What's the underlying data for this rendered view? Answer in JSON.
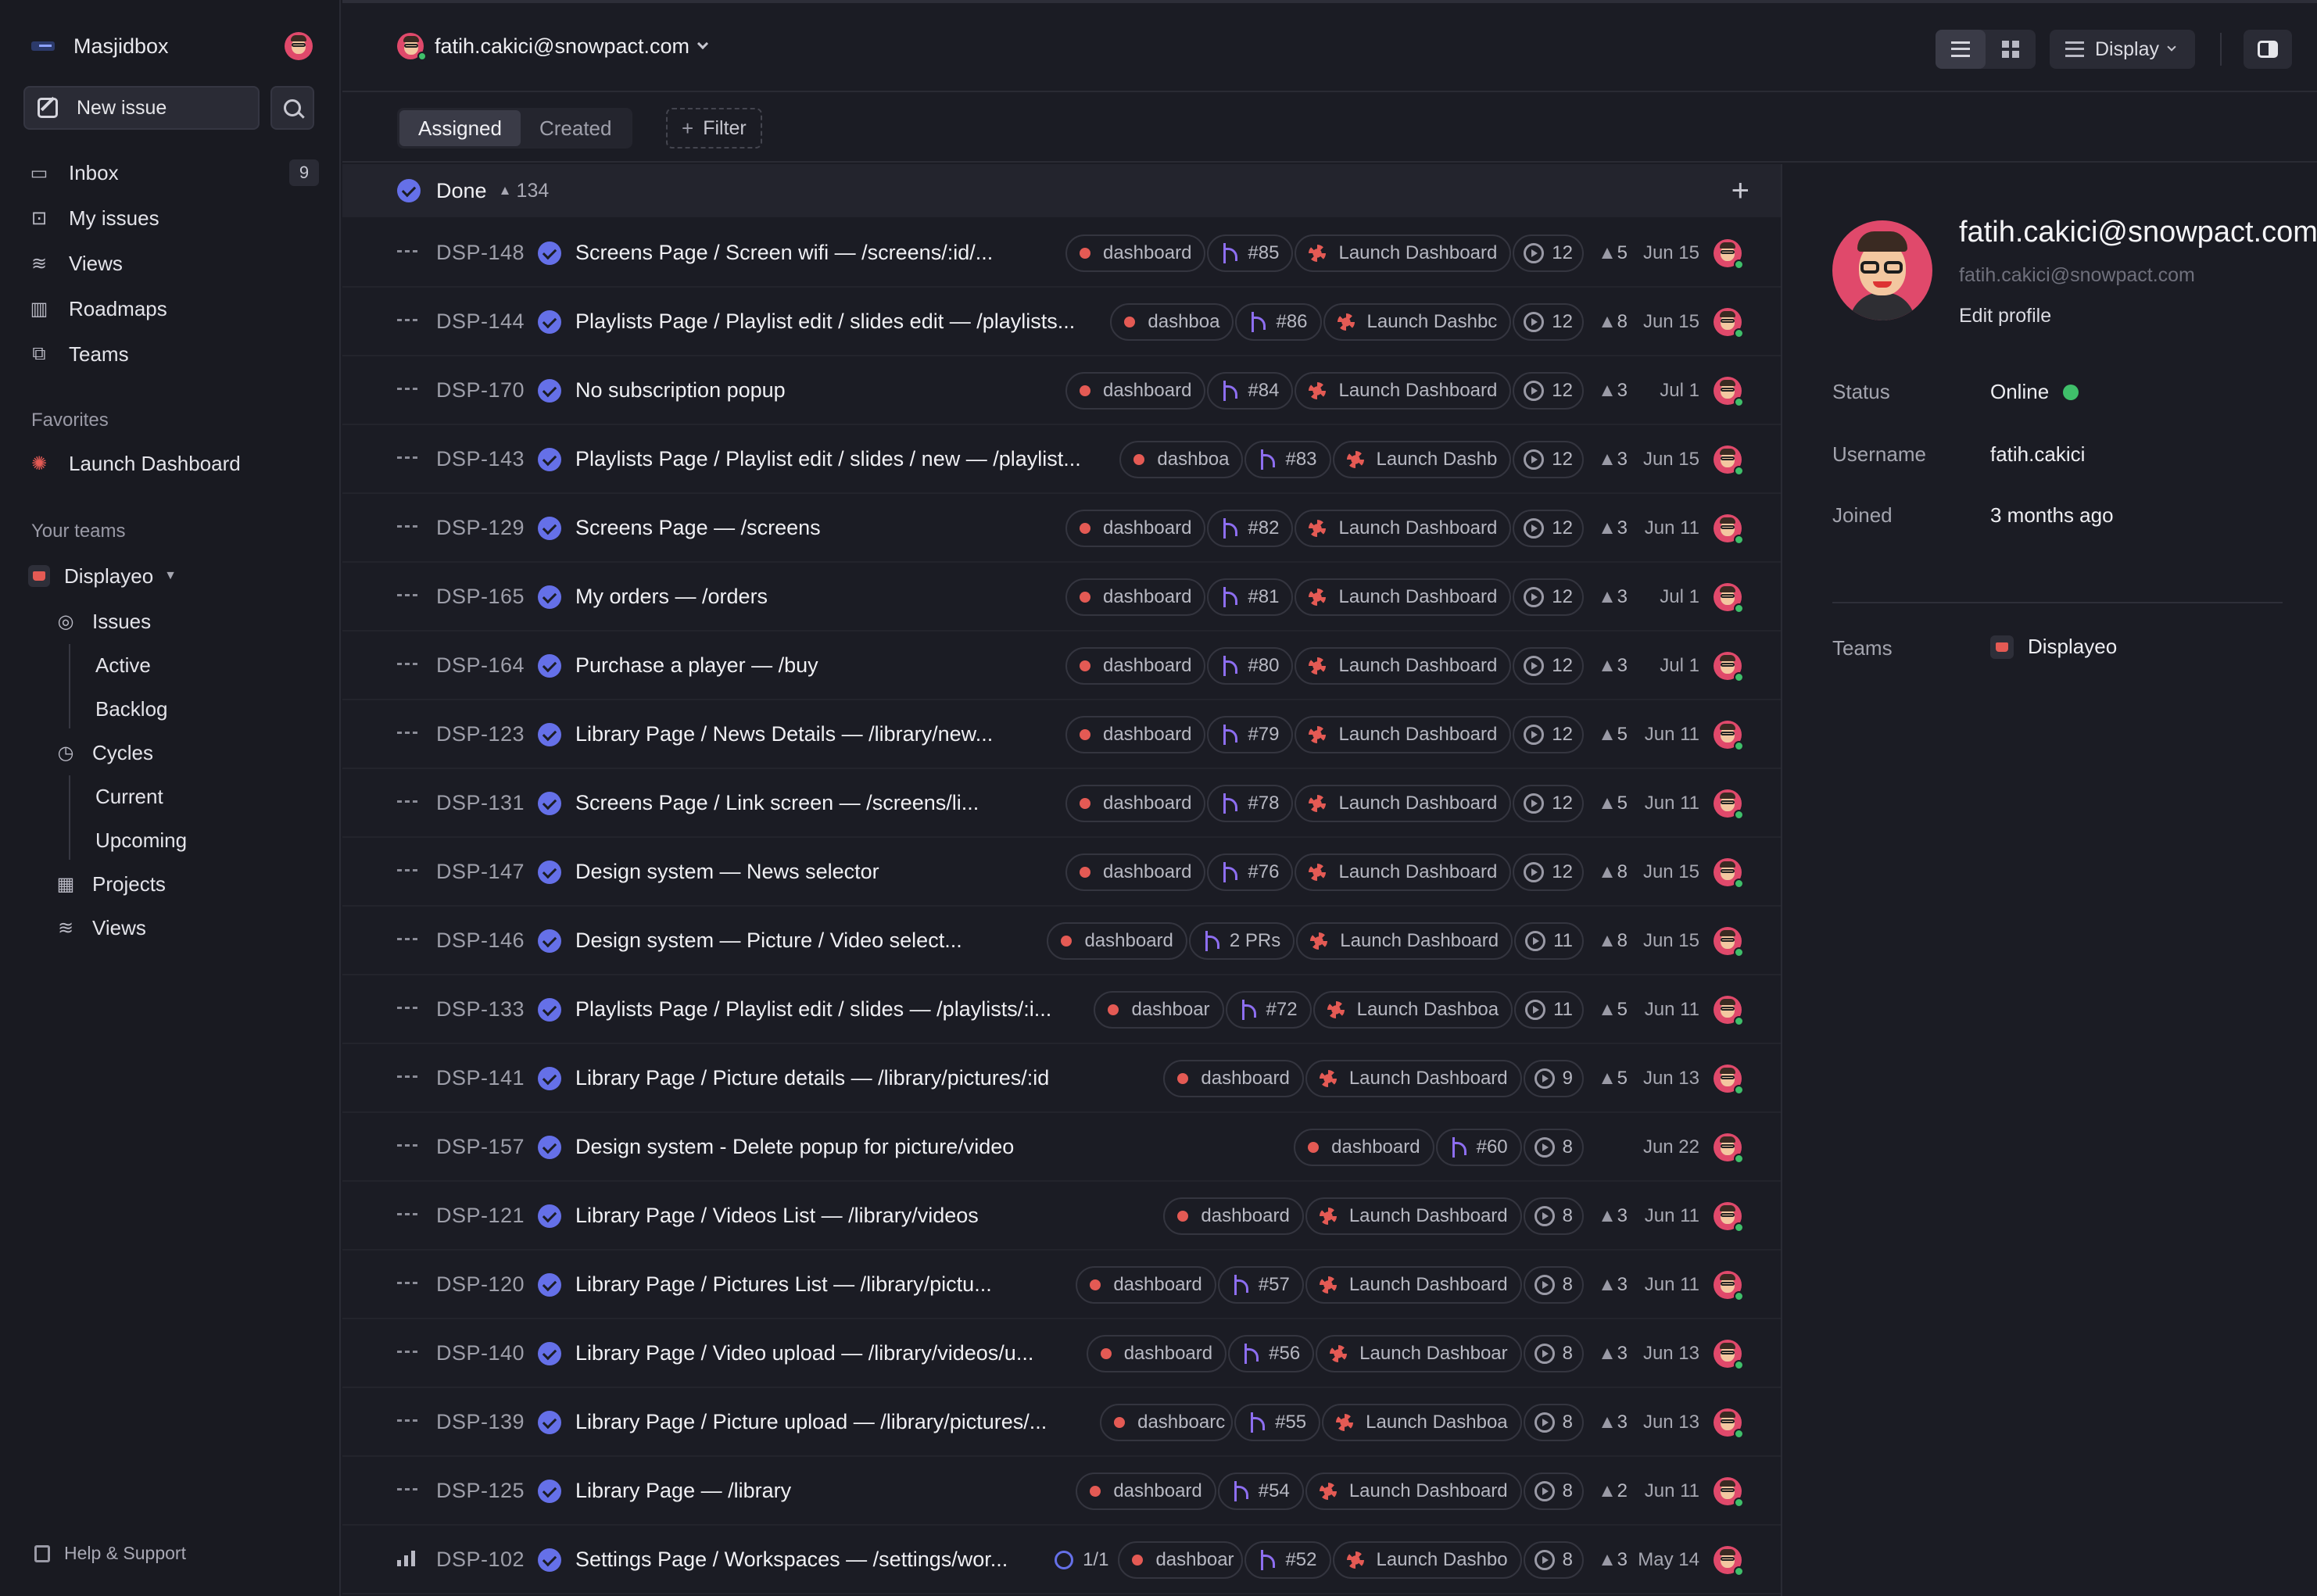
{
  "workspace": {
    "name": "Masjidbox"
  },
  "sidebar": {
    "new_issue_label": "New issue",
    "nav": [
      {
        "label": "Inbox",
        "icon": "inbox-icon",
        "count": "9"
      },
      {
        "label": "My issues",
        "icon": "target-icon"
      },
      {
        "label": "Views",
        "icon": "layers-icon"
      },
      {
        "label": "Roadmaps",
        "icon": "map-icon"
      },
      {
        "label": "Teams",
        "icon": "team-icon"
      }
    ],
    "favorites_label": "Favorites",
    "favorites": [
      {
        "label": "Launch Dashboard",
        "icon": "project-icon"
      }
    ],
    "your_teams_label": "Your teams",
    "team": {
      "name": "Displayeo",
      "items": {
        "issues": "Issues",
        "active": "Active",
        "backlog": "Backlog",
        "cycles": "Cycles",
        "current": "Current",
        "upcoming": "Upcoming",
        "projects": "Projects",
        "views": "Views"
      }
    },
    "help_label": "Help & Support"
  },
  "header": {
    "user": "fatih.cakici@snowpact.com",
    "display_label": "Display",
    "tabs": [
      "Assigned",
      "Created"
    ],
    "active_tab": "Assigned",
    "filter_label": "Filter"
  },
  "group": {
    "title": "Done",
    "count": "134"
  },
  "issues": [
    {
      "id": "DSP-148",
      "title": "Screens Page / Screen wifi — /screens/:id/...",
      "label": "dashboard",
      "pr": "#85",
      "project": "Launch Dashboard",
      "cycle": "12",
      "estimate": "5",
      "date": "Jun 15"
    },
    {
      "id": "DSP-144",
      "title": "Playlists Page / Playlist edit / slides edit — /playlists...",
      "label": "dashboa",
      "pr": "#86",
      "project": "Launch Dashbc",
      "cycle": "12",
      "estimate": "8",
      "date": "Jun 15"
    },
    {
      "id": "DSP-170",
      "title": "No subscription popup",
      "label": "dashboard",
      "pr": "#84",
      "project": "Launch Dashboard",
      "cycle": "12",
      "estimate": "3",
      "date": "Jul 1"
    },
    {
      "id": "DSP-143",
      "title": "Playlists Page / Playlist edit / slides / new — /playlist...",
      "label": "dashboa",
      "pr": "#83",
      "project": "Launch Dashb",
      "cycle": "12",
      "estimate": "3",
      "date": "Jun 15"
    },
    {
      "id": "DSP-129",
      "title": "Screens Page — /screens",
      "label": "dashboard",
      "pr": "#82",
      "project": "Launch Dashboard",
      "cycle": "12",
      "estimate": "3",
      "date": "Jun 11"
    },
    {
      "id": "DSP-165",
      "title": "My orders — /orders",
      "label": "dashboard",
      "pr": "#81",
      "project": "Launch Dashboard",
      "cycle": "12",
      "estimate": "3",
      "date": "Jul 1"
    },
    {
      "id": "DSP-164",
      "title": "Purchase a player — /buy",
      "label": "dashboard",
      "pr": "#80",
      "project": "Launch Dashboard",
      "cycle": "12",
      "estimate": "3",
      "date": "Jul 1"
    },
    {
      "id": "DSP-123",
      "title": "Library Page / News Details — /library/new...",
      "label": "dashboard",
      "pr": "#79",
      "project": "Launch Dashboard",
      "cycle": "12",
      "estimate": "5",
      "date": "Jun 11"
    },
    {
      "id": "DSP-131",
      "title": "Screens Page / Link screen — /screens/li...",
      "label": "dashboard",
      "pr": "#78",
      "project": "Launch Dashboard",
      "cycle": "12",
      "estimate": "5",
      "date": "Jun 11"
    },
    {
      "id": "DSP-147",
      "title": "Design system — News selector",
      "label": "dashboard",
      "pr": "#76",
      "project": "Launch Dashboard",
      "cycle": "12",
      "estimate": "8",
      "date": "Jun 15"
    },
    {
      "id": "DSP-146",
      "title": "Design system — Picture / Video select...",
      "label": "dashboard",
      "pr": "2 PRs",
      "project": "Launch Dashboard",
      "cycle": "11",
      "estimate": "8",
      "date": "Jun 15"
    },
    {
      "id": "DSP-133",
      "title": "Playlists Page / Playlist edit / slides — /playlists/:i...",
      "label": "dashboar",
      "pr": "#72",
      "project": "Launch Dashboa",
      "cycle": "11",
      "estimate": "5",
      "date": "Jun 11"
    },
    {
      "id": "DSP-141",
      "title": "Library Page / Picture details — /library/pictures/:id",
      "label": "dashboard",
      "pr": "",
      "project": "Launch Dashboard",
      "cycle": "9",
      "estimate": "5",
      "date": "Jun 13"
    },
    {
      "id": "DSP-157",
      "title": "Design system - Delete popup for picture/video",
      "label": "dashboard",
      "pr": "#60",
      "project": "",
      "cycle": "8",
      "estimate": "",
      "date": "Jun 22"
    },
    {
      "id": "DSP-121",
      "title": "Library Page / Videos List — /library/videos",
      "label": "dashboard",
      "pr": "",
      "project": "Launch Dashboard",
      "cycle": "8",
      "estimate": "3",
      "date": "Jun 11"
    },
    {
      "id": "DSP-120",
      "title": "Library Page / Pictures List — /library/pictu...",
      "label": "dashboard",
      "pr": "#57",
      "project": "Launch Dashboard",
      "cycle": "8",
      "estimate": "3",
      "date": "Jun 11"
    },
    {
      "id": "DSP-140",
      "title": "Library Page / Video upload — /library/videos/u...",
      "label": "dashboard",
      "pr": "#56",
      "project": "Launch Dashboar",
      "cycle": "8",
      "estimate": "3",
      "date": "Jun 13"
    },
    {
      "id": "DSP-139",
      "title": "Library Page / Picture upload — /library/pictures/...",
      "label": "dashboarc",
      "pr": "#55",
      "project": "Launch Dashboa",
      "cycle": "8",
      "estimate": "3",
      "date": "Jun 13"
    },
    {
      "id": "DSP-125",
      "title": "Library Page — /library",
      "label": "dashboard",
      "pr": "#54",
      "project": "Launch Dashboard",
      "cycle": "8",
      "estimate": "2",
      "date": "Jun 11"
    },
    {
      "id": "DSP-102",
      "title": "Settings Page / Workspaces — /settings/wor...",
      "label": "dashboar",
      "pr": "#52",
      "project": "Launch Dashbo",
      "cycle": "8",
      "estimate": "3",
      "date": "May 14",
      "subtasks": "1/1",
      "priority": "bars"
    }
  ],
  "profile": {
    "name": "fatih.cakici@snowpact.com",
    "email": "fatih.cakici@snowpact.com",
    "edit_label": "Edit profile",
    "fields": [
      {
        "label": "Status",
        "value": "Online"
      },
      {
        "label": "Username",
        "value": "fatih.cakici"
      },
      {
        "label": "Joined",
        "value": "3 months ago"
      }
    ],
    "teams_label": "Teams",
    "team": "Displayeo"
  },
  "colors": {
    "accent": "#6570e8",
    "label_red": "#e45a54",
    "online": "#3fbf6a",
    "pr_purple": "#8d6ef0"
  }
}
